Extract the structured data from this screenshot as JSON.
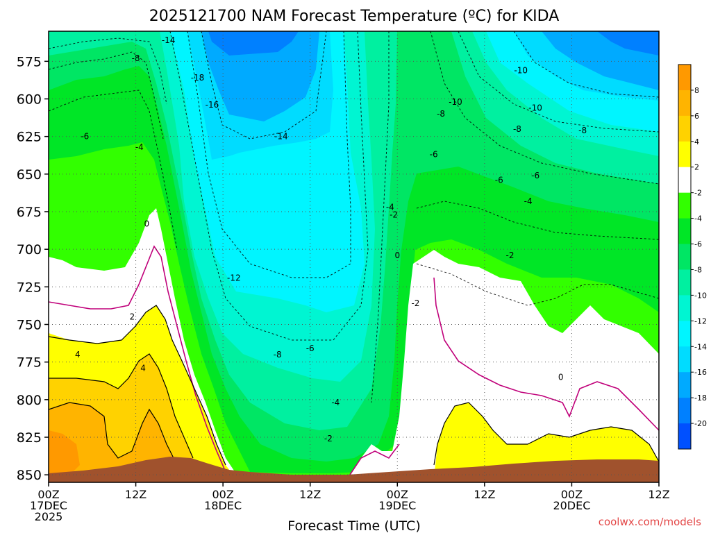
{
  "chart_data": {
    "type": "heatmap",
    "title": "2025121700 NAM Forecast Temperature (ºC) for KIDA",
    "xlabel": "Forecast Time (UTC)",
    "ylabel": "",
    "credit": "coolwx.com/models",
    "x_ticks": [
      {
        "hours": 0,
        "line1": "00Z",
        "line2": "17DEC",
        "line3": "2025"
      },
      {
        "hours": 12,
        "line1": "12Z",
        "line2": "",
        "line3": ""
      },
      {
        "hours": 24,
        "line1": "00Z",
        "line2": "18DEC",
        "line3": ""
      },
      {
        "hours": 36,
        "line1": "12Z",
        "line2": "",
        "line3": ""
      },
      {
        "hours": 48,
        "line1": "00Z",
        "line2": "19DEC",
        "line3": ""
      },
      {
        "hours": 60,
        "line1": "12Z",
        "line2": "",
        "line3": ""
      },
      {
        "hours": 72,
        "line1": "00Z",
        "line2": "20DEC",
        "line3": ""
      },
      {
        "hours": 84,
        "line1": "12Z",
        "line2": "",
        "line3": ""
      }
    ],
    "xlim": [
      0,
      84
    ],
    "y_ticks": [
      "575",
      "600",
      "625",
      "650",
      "675",
      "700",
      "725",
      "750",
      "775",
      "800",
      "825",
      "850"
    ],
    "y_tick_values": [
      575,
      600,
      625,
      650,
      675,
      700,
      725,
      750,
      775,
      800,
      825,
      850
    ],
    "ylim": [
      555,
      855
    ],
    "grid": true,
    "colorbar": {
      "labels": [
        "8",
        "6",
        "4",
        "2",
        "-2",
        "-4",
        "-6",
        "-8",
        "-10",
        "-12",
        "-14",
        "-16",
        "-18",
        "-20"
      ],
      "colors": [
        "#ff9900",
        "#ffb400",
        "#ffd200",
        "#ffff00",
        "#ffffff",
        "#32ff00",
        "#00e626",
        "#00e664",
        "#00f0a0",
        "#00f5d2",
        "#00f5ff",
        "#00dcff",
        "#00aaff",
        "#0080ff",
        "#0050ff"
      ]
    },
    "contour_labels": [
      {
        "text": "-14",
        "hours": 16.5,
        "level": 561
      },
      {
        "text": "-8",
        "hours": 12.0,
        "level": 573
      },
      {
        "text": "-18",
        "hours": 20.5,
        "level": 586
      },
      {
        "text": "-16",
        "hours": 22.5,
        "level": 604
      },
      {
        "text": "-10",
        "hours": 65.0,
        "level": 581
      },
      {
        "text": "-10",
        "hours": 56.0,
        "level": 602
      },
      {
        "text": "-10",
        "hours": 67.0,
        "level": 606
      },
      {
        "text": "-8",
        "hours": 54.0,
        "level": 610
      },
      {
        "text": "-8",
        "hours": 64.5,
        "level": 620
      },
      {
        "text": "-8",
        "hours": 73.5,
        "level": 621
      },
      {
        "text": "-6",
        "hours": 5.0,
        "level": 625
      },
      {
        "text": "-4",
        "hours": 12.5,
        "level": 632
      },
      {
        "text": "-14",
        "hours": 32.0,
        "level": 625
      },
      {
        "text": "-6",
        "hours": 53.0,
        "level": 637
      },
      {
        "text": "-6",
        "hours": 62.0,
        "level": 654
      },
      {
        "text": "-6",
        "hours": 67.0,
        "level": 651
      },
      {
        "text": "-4",
        "hours": 47.0,
        "level": 672
      },
      {
        "text": "-4",
        "hours": 66.0,
        "level": 668
      },
      {
        "text": "0",
        "hours": 13.5,
        "level": 683
      },
      {
        "text": "-2",
        "hours": 47.5,
        "level": 677
      },
      {
        "text": "0",
        "hours": 48.0,
        "level": 704
      },
      {
        "text": "-2",
        "hours": 63.5,
        "level": 704
      },
      {
        "text": "-12",
        "hours": 25.5,
        "level": 719
      },
      {
        "text": "-2",
        "hours": 50.5,
        "level": 736
      },
      {
        "text": "2",
        "hours": 11.5,
        "level": 745
      },
      {
        "text": "4",
        "hours": 4.0,
        "level": 770
      },
      {
        "text": "4",
        "hours": 13.0,
        "level": 779
      },
      {
        "text": "-8",
        "hours": 31.5,
        "level": 770
      },
      {
        "text": "-6",
        "hours": 36.0,
        "level": 766
      },
      {
        "text": "0",
        "hours": 70.5,
        "level": 785
      },
      {
        "text": "-4",
        "hours": 39.5,
        "level": 802
      },
      {
        "text": "-2",
        "hours": 38.5,
        "level": 826
      }
    ]
  }
}
